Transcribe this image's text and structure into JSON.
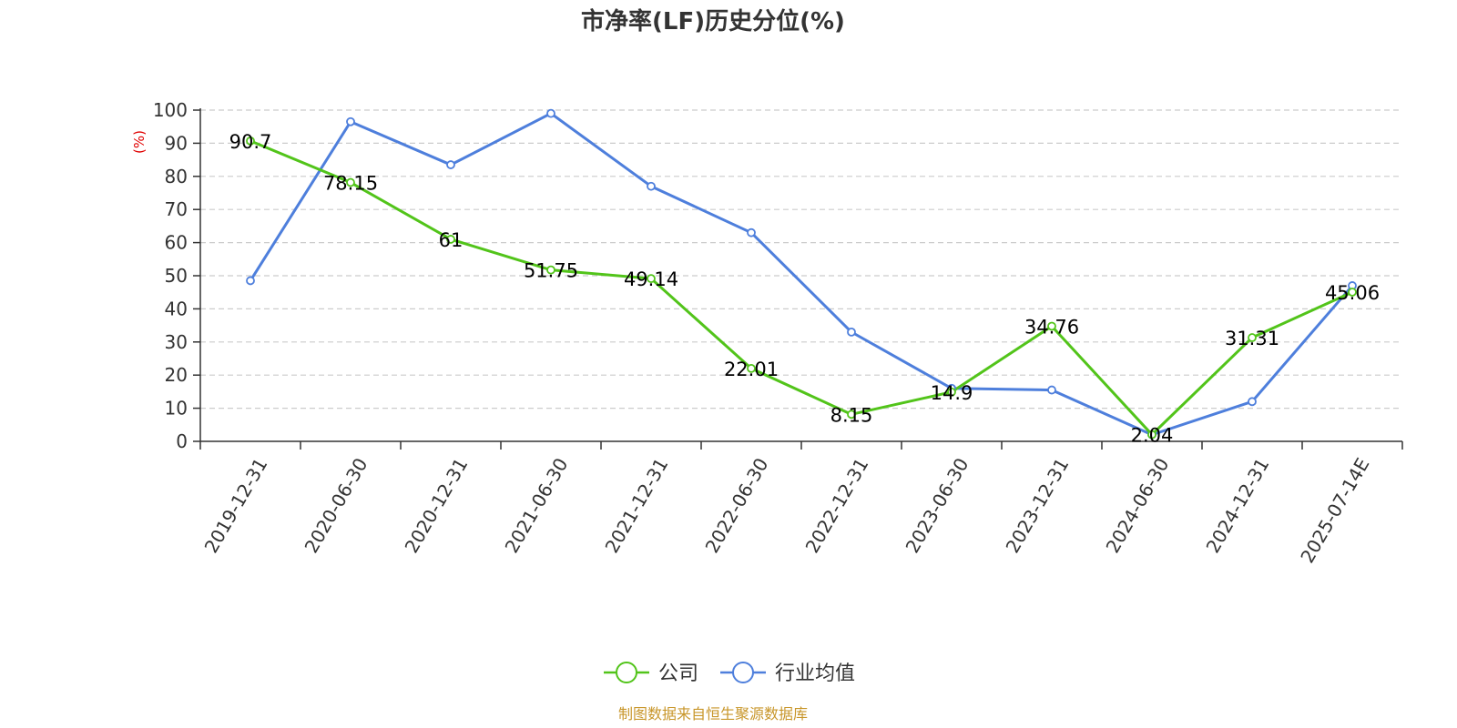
{
  "chart_data": {
    "type": "line",
    "title": "市净率(LF)历史分位(%)",
    "ylabel": "(%)",
    "xlabel": "",
    "categories": [
      "2019-12-31",
      "2020-06-30",
      "2020-12-31",
      "2021-06-30",
      "2021-12-31",
      "2022-06-30",
      "2022-12-31",
      "2023-06-30",
      "2023-12-31",
      "2024-06-30",
      "2024-12-31",
      "2025-07-14E"
    ],
    "ylim": [
      0,
      100
    ],
    "yticks": [
      0,
      10,
      20,
      30,
      40,
      50,
      60,
      70,
      80,
      90,
      100
    ],
    "grid": true,
    "legend_position": "bottom",
    "series": [
      {
        "name": "公司",
        "color": "#52c41a",
        "values": [
          90.7,
          78.15,
          61,
          51.75,
          49.14,
          22.01,
          8.15,
          14.9,
          34.76,
          2.04,
          31.31,
          45.06
        ],
        "labels": [
          "90.7",
          "78.15",
          "61",
          "51.75",
          "49.14",
          "22.01",
          "8.15",
          "14.9",
          "34.76",
          "2.04",
          "31.31",
          "45.06"
        ]
      },
      {
        "name": "行业均值",
        "color": "#4e7fdc",
        "values": [
          48.5,
          96.5,
          83.5,
          99,
          77,
          63,
          33,
          16,
          15.5,
          2,
          12,
          47
        ]
      }
    ]
  },
  "source_text": "制图数据来自恒生聚源数据库",
  "colors": {
    "axis": "#333333",
    "grid": "#cccccc",
    "ylabel": "#e00000",
    "source": "#c8962a"
  }
}
